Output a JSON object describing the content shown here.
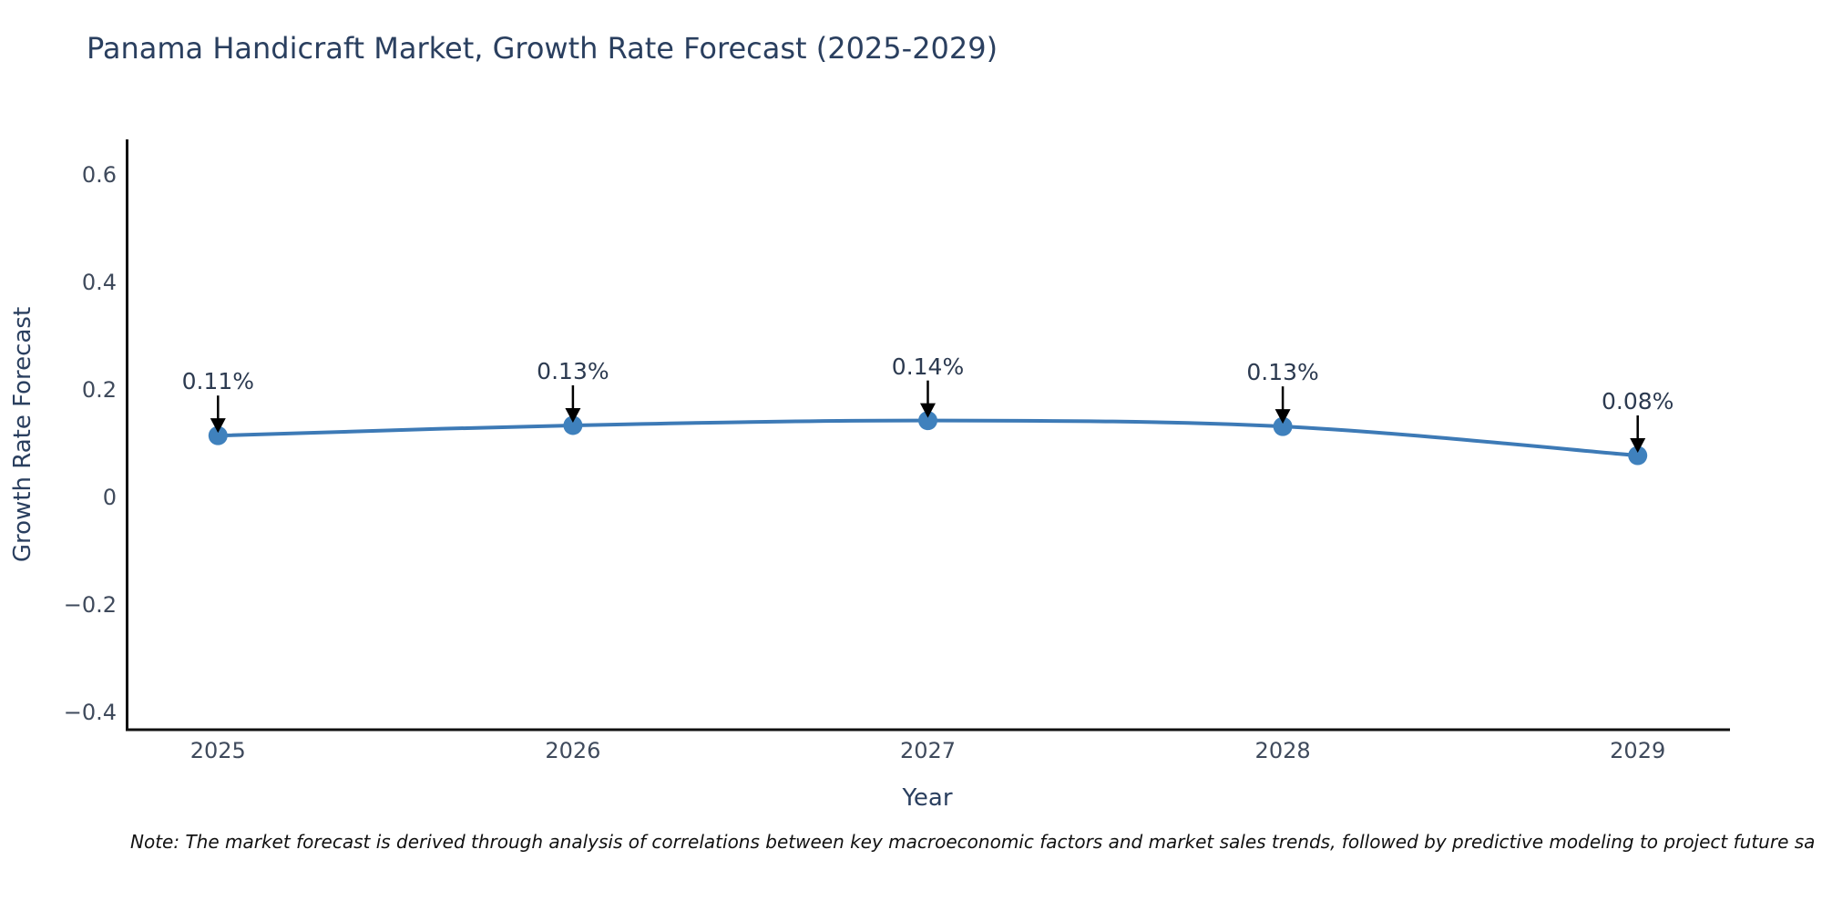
{
  "note": "Note: The market forecast is derived through analysis of correlations between key macroeconomic factors and market sales trends, followed by predictive modeling to project future sa",
  "chart_data": {
    "type": "line",
    "title": "Panama Handicraft Market, Growth Rate Forecast (2025-2029)",
    "xlabel": "Year",
    "ylabel": "Growth Rate Forecast",
    "x": [
      2025,
      2026,
      2027,
      2028,
      2029
    ],
    "xtick_labels": [
      "2025",
      "2026",
      "2027",
      "2028",
      "2029"
    ],
    "values": [
      0.115,
      0.134,
      0.143,
      0.132,
      0.078
    ],
    "point_labels": [
      "0.11%",
      "0.13%",
      "0.14%",
      "0.13%",
      "0.08%"
    ],
    "yticks": [
      0.6,
      0.4,
      0.2,
      0,
      -0.2,
      -0.4
    ],
    "ytick_labels": [
      "0.6",
      "0.4",
      "0.2",
      "0",
      "−0.2",
      "−0.4"
    ],
    "xlim": [
      2024.74,
      2029.26
    ],
    "ylim": [
      -0.432,
      0.666
    ],
    "grid": false,
    "legend": false,
    "line_shape": "spline",
    "colors": {
      "line": "#3d7ab6",
      "marker": "#3f81bd",
      "arrow": "#000000",
      "axis": "#111111",
      "title_text": "#2a3f5f",
      "tick_text": "#3f4a5c"
    }
  }
}
